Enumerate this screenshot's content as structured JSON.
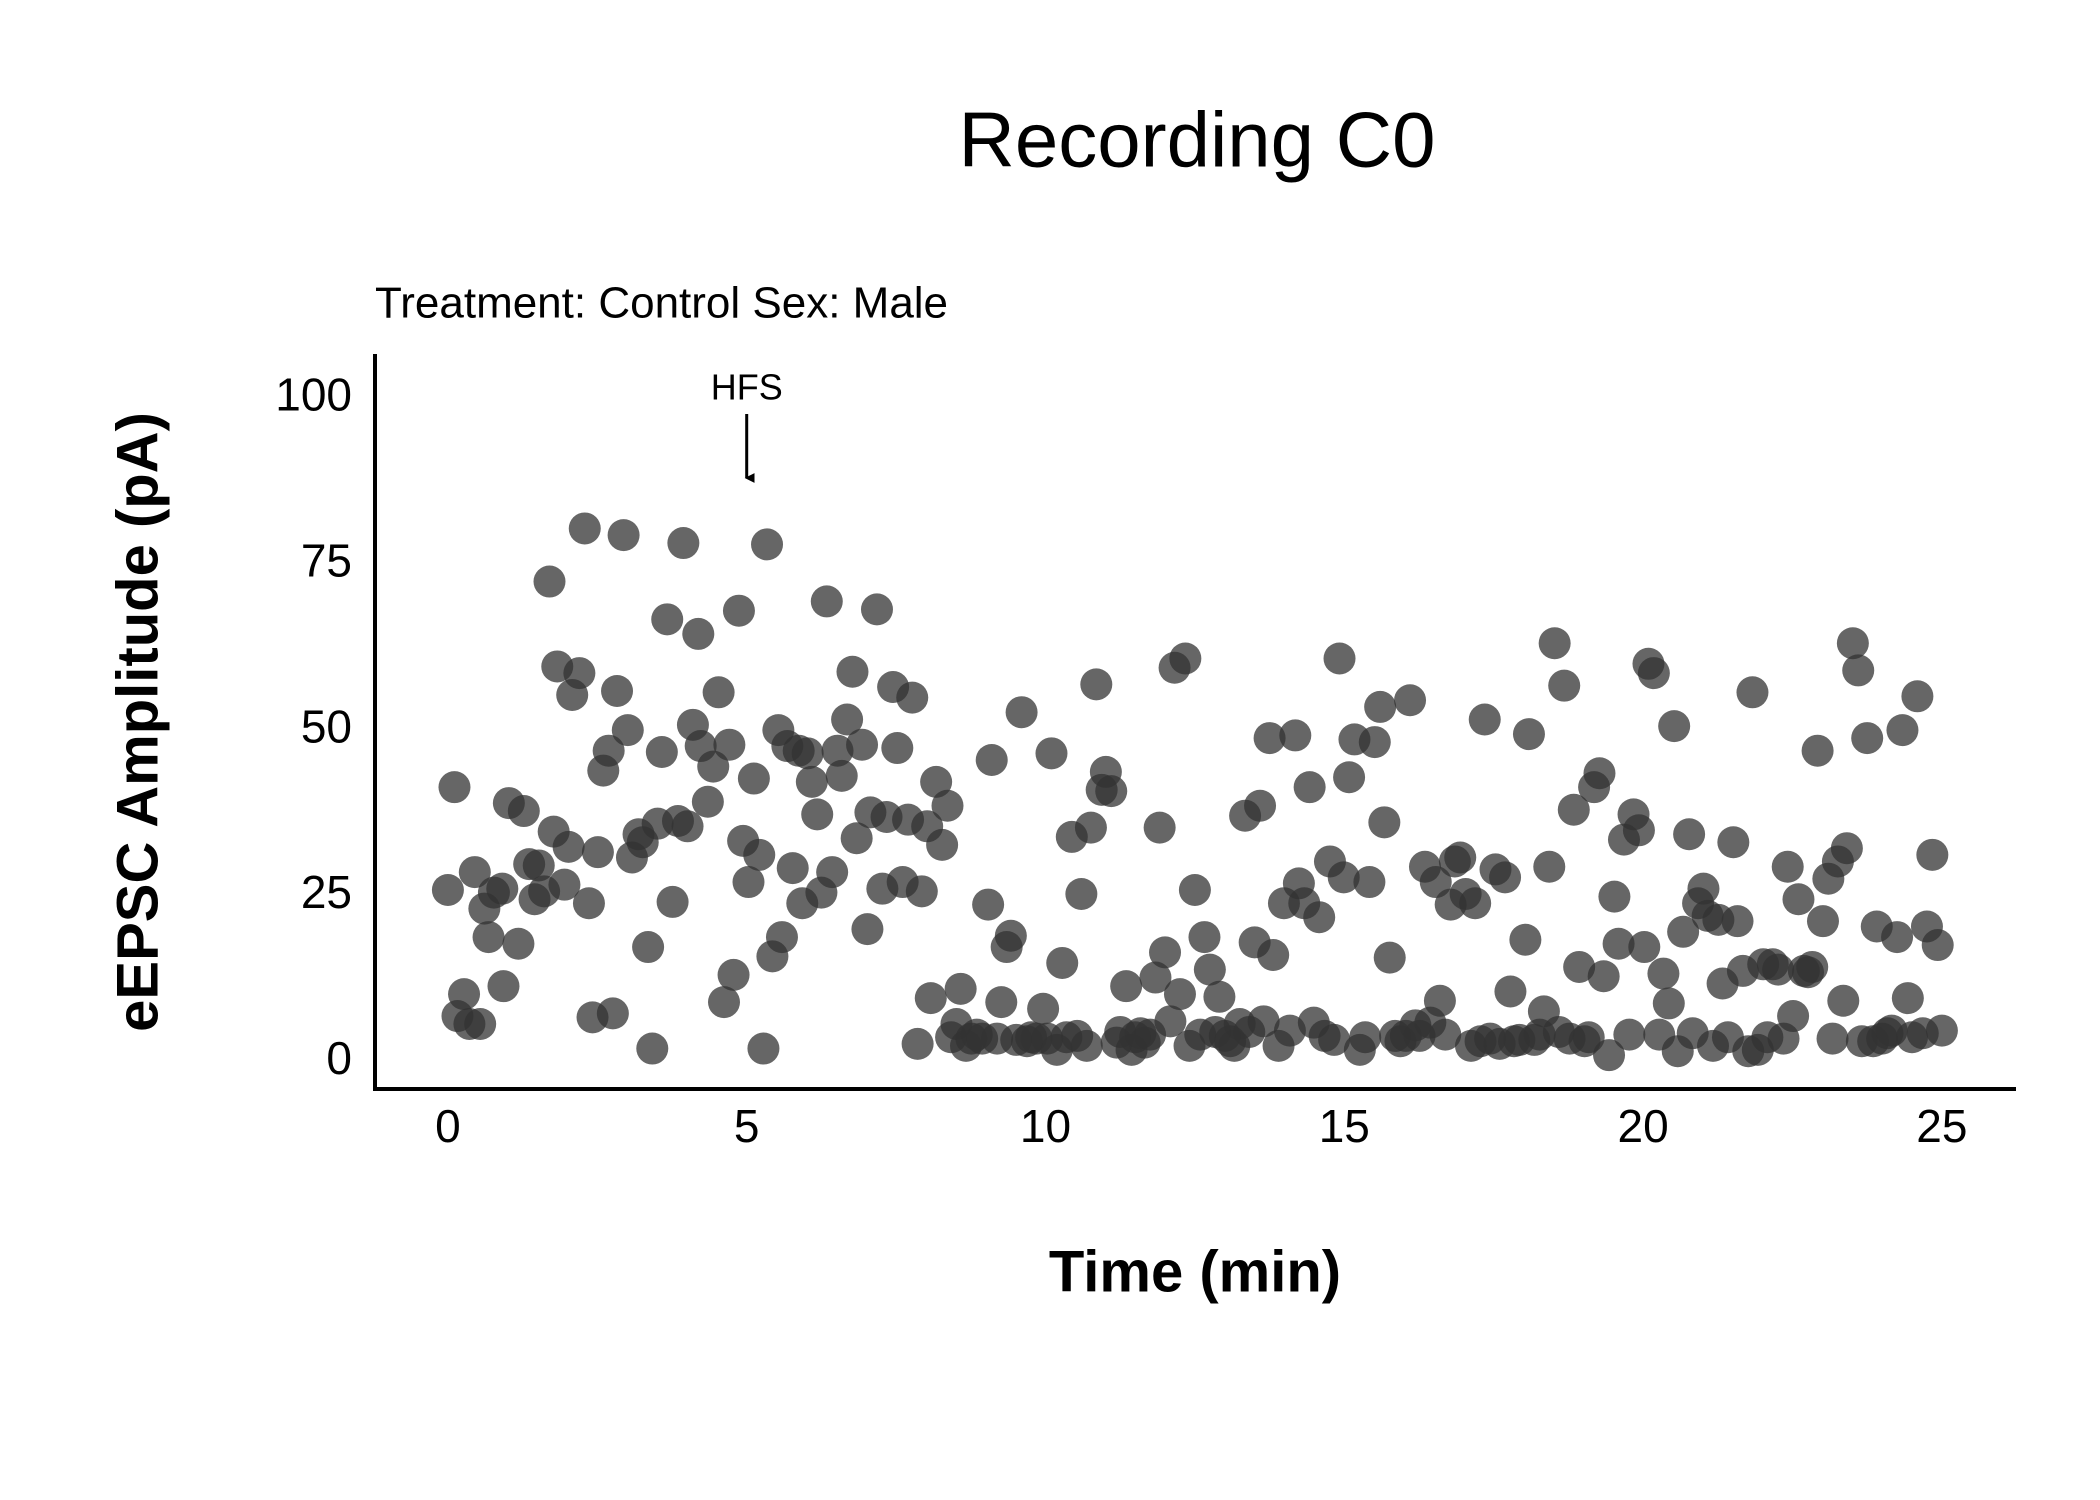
{
  "chart_data": {
    "type": "scatter",
    "title": "Recording C0",
    "subtitle": "Treatment: Control  Sex: Male",
    "x_label": "Time (min)",
    "y_label": "eEPSC Amplitude (pA)",
    "annotations": [
      {
        "text": "HFS",
        "x": 5
      }
    ],
    "color": "#333333",
    "alpha": 0.75,
    "grid": false,
    "xlim": [
      -1.22,
      26.24
    ],
    "ylim": [
      -4.1,
      106.7
    ],
    "xticks": [
      0,
      5,
      10,
      15,
      20,
      25
    ],
    "yticks": [
      0,
      25,
      50,
      75,
      100
    ],
    "x": [
      0,
      0.11,
      0.16,
      0.27,
      0.36,
      0.45,
      0.54,
      0.61,
      0.68,
      0.77,
      0.91,
      0.93,
      1.02,
      1.18,
      1.27,
      1.36,
      1.45,
      1.52,
      1.61,
      1.7,
      1.77,
      1.83,
      1.95,
      2.02,
      2.08,
      2.2,
      2.29,
      2.36,
      2.42,
      2.51,
      2.6,
      2.69,
      2.76,
      2.83,
      2.94,
      3.01,
      3.08,
      3.19,
      3.26,
      3.35,
      3.42,
      3.51,
      3.58,
      3.67,
      3.76,
      3.85,
      3.94,
      4.01,
      4.1,
      4.19,
      4.23,
      4.35,
      4.44,
      4.53,
      4.62,
      4.71,
      4.78,
      4.87,
      4.94,
      5.03,
      5.12,
      5.21,
      5.28,
      5.34,
      5.43,
      5.53,
      5.59,
      5.68,
      5.77,
      5.87,
      5.93,
      6.02,
      6.09,
      6.18,
      6.25,
      6.34,
      6.43,
      6.52,
      6.59,
      6.68,
      6.77,
      6.84,
      6.93,
      7.02,
      7.07,
      7.18,
      7.27,
      7.34,
      7.45,
      7.52,
      7.61,
      7.7,
      7.77,
      7.86,
      7.93,
      8.02,
      8.08,
      8.17,
      8.27,
      8.36,
      8.42,
      8.51,
      8.58,
      8.67,
      8.76,
      8.85,
      8.94,
      9.04,
      9.1,
      9.19,
      9.26,
      9.35,
      9.42,
      9.51,
      9.6,
      9.69,
      9.76,
      9.85,
      9.96,
      10.03,
      10.1,
      10.19,
      10.28,
      10.35,
      10.44,
      10.53,
      10.6,
      10.69,
      10.76,
      10.85,
      10.94,
      11.01,
      11.1,
      11.19,
      11.25,
      11.35,
      11.44,
      11.5,
      11.59,
      11.66,
      11.75,
      11.84,
      11.91,
      12.0,
      12.09,
      12.16,
      12.25,
      12.34,
      12.41,
      12.5,
      12.59,
      12.66,
      12.75,
      12.84,
      12.91,
      13.0,
      13.09,
      13.16,
      13.25,
      13.34,
      13.41,
      13.5,
      13.59,
      13.65,
      13.75,
      13.81,
      13.9,
      13.99,
      14.09,
      14.18,
      14.24,
      14.33,
      14.42,
      14.49,
      14.58,
      14.67,
      14.76,
      14.83,
      14.92,
      14.99,
      15.08,
      15.17,
      15.26,
      15.35,
      15.42,
      15.51,
      15.6,
      15.67,
      15.76,
      15.85,
      15.94,
      16.03,
      16.1,
      16.19,
      16.26,
      16.35,
      16.44,
      16.53,
      16.6,
      16.69,
      16.78,
      16.85,
      16.94,
      17.03,
      17.12,
      17.19,
      17.28,
      17.35,
      17.44,
      17.53,
      17.6,
      17.69,
      17.78,
      17.84,
      17.93,
      18.03,
      18.09,
      18.18,
      18.27,
      18.34,
      18.43,
      18.52,
      18.59,
      18.68,
      18.77,
      18.84,
      18.93,
      19.02,
      19.09,
      19.18,
      19.27,
      19.34,
      19.43,
      19.52,
      19.59,
      19.68,
      19.77,
      19.84,
      19.93,
      20.02,
      20.09,
      20.18,
      20.27,
      20.34,
      20.43,
      20.52,
      20.58,
      20.67,
      20.77,
      20.83,
      20.92,
      21.01,
      21.08,
      21.17,
      21.26,
      21.33,
      21.42,
      21.51,
      21.58,
      21.67,
      21.76,
      21.83,
      21.92,
      22.01,
      22.08,
      22.17,
      22.26,
      22.35,
      22.42,
      22.51,
      22.6,
      22.69,
      22.76,
      22.83,
      22.92,
      23.01,
      23.1,
      23.17,
      23.26,
      23.35,
      23.41,
      23.51,
      23.6,
      23.66,
      23.75,
      23.85,
      23.91,
      24.0,
      24.09,
      24.16,
      24.25,
      24.34,
      24.43,
      24.5,
      24.59,
      24.68,
      24.75,
      24.84,
      24.93,
      25.0
    ],
    "values": [
      25.9,
      41.4,
      6.9,
      10.2,
      5.7,
      28.6,
      5.7,
      23.1,
      18.8,
      25.5,
      26.1,
      11.4,
      39,
      17.8,
      37.8,
      29.8,
      24.5,
      29.6,
      25.7,
      72.4,
      34.7,
      59.6,
      26.7,
      32.4,
      55.3,
      58.6,
      80.4,
      23.9,
      6.7,
      31.6,
      43.9,
      46.9,
      7.3,
      55.9,
      79.4,
      50,
      30.8,
      34.3,
      33.1,
      17.3,
      2,
      35.9,
      46.7,
      66.7,
      24.1,
      36.3,
      78.2,
      35.5,
      50.8,
      64.5,
      47.6,
      39.2,
      44.5,
      55.7,
      9,
      47.8,
      13.1,
      68,
      33.3,
      27.1,
      42.7,
      31.2,
      2,
      78,
      15.9,
      50,
      18.8,
      47.6,
      29.2,
      46.9,
      23.9,
      46.5,
      42.2,
      37.3,
      25.5,
      69.4,
      28.6,
      46.9,
      43.1,
      51.6,
      58.8,
      33.7,
      47.8,
      20,
      37.6,
      68.2,
      26.1,
      36.9,
      56.5,
      47.3,
      27.1,
      36.5,
      54.9,
      2.7,
      25.7,
      35.5,
      9.6,
      42.2,
      32.7,
      38.6,
      3.7,
      5.7,
      11,
      2.4,
      3.5,
      4.1,
      3.5,
      23.7,
      45.5,
      3.5,
      9,
      17.3,
      19,
      3.3,
      52.7,
      3.1,
      3.7,
      3.5,
      8,
      3.5,
      46.5,
      1.8,
      14.9,
      3.7,
      33.9,
      3.9,
      25.3,
      2.4,
      35.3,
      56.9,
      41,
      43.7,
      40.8,
      2.9,
      4.5,
      11.4,
      1.8,
      3.7,
      4.3,
      2.9,
      4.1,
      12.7,
      35.3,
      16.5,
      6.1,
      59.4,
      10.2,
      60.8,
      2.4,
      25.9,
      4.1,
      18.8,
      13.9,
      4.5,
      9.8,
      3.9,
      3.1,
      2.4,
      5.7,
      37.1,
      4.5,
      18,
      38.6,
      6.1,
      48.8,
      16.1,
      2.4,
      23.9,
      4.7,
      49.2,
      26.9,
      23.9,
      41.4,
      5.9,
      21.8,
      3.9,
      30.2,
      3.3,
      60.8,
      27.8,
      42.9,
      48.6,
      1.8,
      3.7,
      27.1,
      48.2,
      53.5,
      36.1,
      15.7,
      3.9,
      3.1,
      3.9,
      54.5,
      5.5,
      3.9,
      29.4,
      5.9,
      27.1,
      9.2,
      4.1,
      23.7,
      30.2,
      30.8,
      25.3,
      2.4,
      23.9,
      3.1,
      51.6,
      3.5,
      29,
      2.7,
      27.8,
      10.6,
      3.1,
      3.3,
      18.4,
      49.4,
      3.3,
      4.1,
      7.6,
      29.4,
      63.1,
      4.5,
      56.7,
      3.5,
      38,
      14.3,
      3.1,
      3.7,
      41.4,
      43.5,
      12.9,
      1,
      24.9,
      17.8,
      33.5,
      4.1,
      37.3,
      34.9,
      17.3,
      60,
      58.6,
      4.1,
      13.3,
      8.8,
      50.6,
      1.6,
      19.6,
      34.3,
      4.3,
      23.9,
      26.1,
      22,
      2.4,
      21.4,
      11.8,
      3.7,
      33.1,
      21.2,
      13.7,
      1.6,
      55.7,
      1.8,
      14.7,
      3.7,
      14.7,
      13.9,
      3.5,
      29.4,
      6.9,
      24.5,
      13.7,
      13.5,
      14.3,
      46.9,
      21.2,
      27.6,
      3.5,
      30.2,
      9.2,
      32.2,
      63.1,
      59,
      3.1,
      48.8,
      3.1,
      20.4,
      3.5,
      4.3,
      4.7,
      18.8,
      50,
      9.6,
      3.7,
      55.1,
      4.3,
      20.4,
      31.2,
      17.6,
      4.7
    ]
  }
}
